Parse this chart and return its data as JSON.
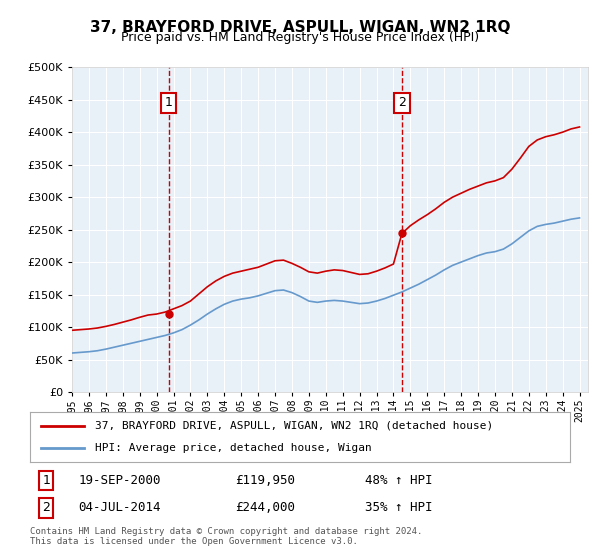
{
  "title": "37, BRAYFORD DRIVE, ASPULL, WIGAN, WN2 1RQ",
  "subtitle": "Price paid vs. HM Land Registry's House Price Index (HPI)",
  "legend_line1": "37, BRAYFORD DRIVE, ASPULL, WIGAN, WN2 1RQ (detached house)",
  "legend_line2": "HPI: Average price, detached house, Wigan",
  "sale1_date": 2000.72,
  "sale1_price": 119950,
  "sale1_label": "1",
  "sale1_display": "19-SEP-2000",
  "sale1_price_display": "£119,950",
  "sale1_hpi": "48% ↑ HPI",
  "sale2_date": 2014.5,
  "sale2_price": 244000,
  "sale2_label": "2",
  "sale2_display": "04-JUL-2014",
  "sale2_price_display": "£244,000",
  "sale2_hpi": "35% ↑ HPI",
  "footer": "Contains HM Land Registry data © Crown copyright and database right 2024.\nThis data is licensed under the Open Government Licence v3.0.",
  "ylim": [
    0,
    500000
  ],
  "xlim": [
    1995,
    2025.5
  ],
  "yticks": [
    0,
    50000,
    100000,
    150000,
    200000,
    250000,
    300000,
    350000,
    400000,
    450000,
    500000
  ],
  "background_color": "#e8f0f8",
  "plot_bg": "#e8f0f8",
  "red_color": "#cc0000",
  "blue_color": "#6699cc",
  "hpi_x": [
    1995,
    1995.5,
    1996,
    1996.5,
    1997,
    1997.5,
    1998,
    1998.5,
    1999,
    1999.5,
    2000,
    2000.5,
    2001,
    2001.5,
    2002,
    2002.5,
    2003,
    2003.5,
    2004,
    2004.5,
    2005,
    2005.5,
    2006,
    2006.5,
    2007,
    2007.5,
    2008,
    2008.5,
    2009,
    2009.5,
    2010,
    2010.5,
    2011,
    2011.5,
    2012,
    2012.5,
    2013,
    2013.5,
    2014,
    2014.5,
    2015,
    2015.5,
    2016,
    2016.5,
    2017,
    2017.5,
    2018,
    2018.5,
    2019,
    2019.5,
    2020,
    2020.5,
    2021,
    2021.5,
    2022,
    2022.5,
    2023,
    2023.5,
    2024,
    2024.5,
    2025
  ],
  "hpi_y": [
    60000,
    61000,
    62000,
    63500,
    66000,
    69000,
    72000,
    75000,
    78000,
    81000,
    84000,
    87000,
    91000,
    96000,
    103000,
    111000,
    120000,
    128000,
    135000,
    140000,
    143000,
    145000,
    148000,
    152000,
    156000,
    157000,
    153000,
    147000,
    140000,
    138000,
    140000,
    141000,
    140000,
    138000,
    136000,
    137000,
    140000,
    144000,
    149000,
    154000,
    160000,
    166000,
    173000,
    180000,
    188000,
    195000,
    200000,
    205000,
    210000,
    214000,
    216000,
    220000,
    228000,
    238000,
    248000,
    255000,
    258000,
    260000,
    263000,
    266000,
    268000
  ],
  "red_x": [
    1995,
    1995.5,
    1996,
    1996.5,
    1997,
    1997.5,
    1998,
    1998.5,
    1999,
    1999.5,
    2000,
    2000.5,
    2001,
    2001.5,
    2002,
    2002.5,
    2003,
    2003.5,
    2004,
    2004.5,
    2005,
    2005.5,
    2006,
    2006.5,
    2007,
    2007.5,
    2008,
    2008.5,
    2009,
    2009.5,
    2010,
    2010.5,
    2011,
    2011.5,
    2012,
    2012.5,
    2013,
    2013.5,
    2014,
    2014.5,
    2015,
    2015.5,
    2016,
    2016.5,
    2017,
    2017.5,
    2018,
    2018.5,
    2019,
    2019.5,
    2020,
    2020.5,
    2021,
    2021.5,
    2022,
    2022.5,
    2023,
    2023.5,
    2024,
    2024.5,
    2025
  ],
  "red_y": [
    95000,
    96000,
    97000,
    98500,
    101000,
    104000,
    107500,
    111000,
    115000,
    118500,
    120000,
    123000,
    128000,
    133000,
    140000,
    151000,
    162000,
    171000,
    178000,
    183000,
    186000,
    189000,
    192000,
    197000,
    202000,
    203000,
    198000,
    192000,
    185000,
    183000,
    186000,
    188000,
    187000,
    184000,
    181000,
    182000,
    186000,
    191000,
    197000,
    244000,
    256000,
    265000,
    273000,
    282000,
    292000,
    300000,
    306000,
    312000,
    317000,
    322000,
    325000,
    330000,
    343000,
    360000,
    378000,
    388000,
    393000,
    396000,
    400000,
    405000,
    408000
  ]
}
